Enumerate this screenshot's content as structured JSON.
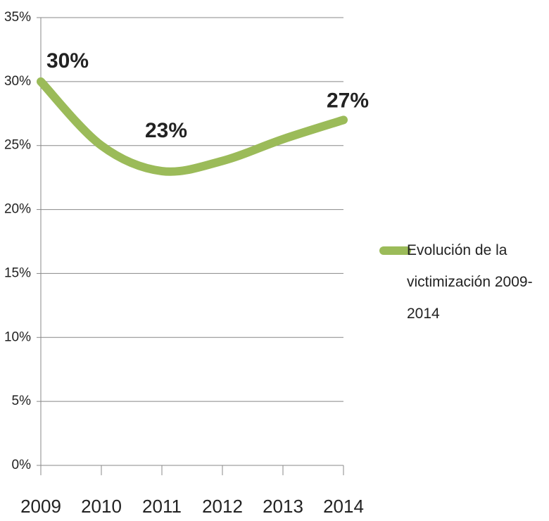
{
  "chart_data": {
    "type": "line",
    "categories": [
      "2009",
      "2010",
      "2011",
      "2012",
      "2013",
      "2014"
    ],
    "series": [
      {
        "name": "Evolución de la victimización 2009-2014",
        "color": "#9bbb59",
        "values": [
          30,
          25,
          23,
          23.8,
          25.5,
          27
        ],
        "value_labels": [
          "30%",
          null,
          "23%",
          null,
          null,
          "27%"
        ]
      }
    ],
    "ylim": [
      0,
      35
    ],
    "yticks": [
      {
        "value": 0,
        "label": "0%"
      },
      {
        "value": 5,
        "label": "5%"
      },
      {
        "value": 10,
        "label": "10%"
      },
      {
        "value": 15,
        "label": "15%"
      },
      {
        "value": 20,
        "label": "20%"
      },
      {
        "value": 25,
        "label": "25%"
      },
      {
        "value": 30,
        "label": "30%"
      },
      {
        "value": 35,
        "label": "35%"
      }
    ],
    "grid": true,
    "legend": "right"
  }
}
